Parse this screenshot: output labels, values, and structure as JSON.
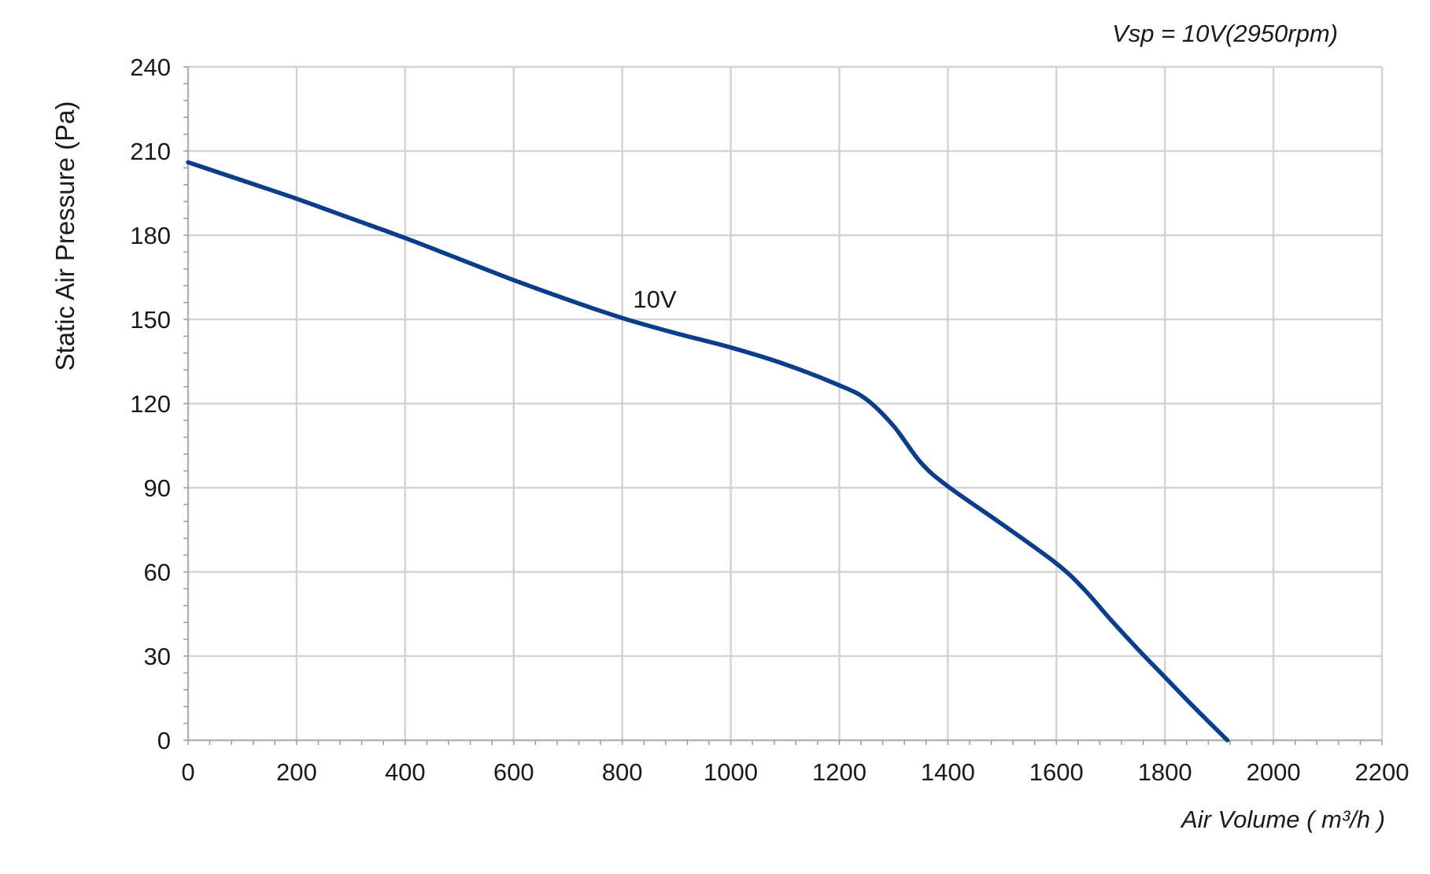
{
  "chart_data": {
    "type": "line",
    "title": "",
    "annotation": "Vsp = 10V(2950rpm)",
    "xlabel": "Air Volume ( m³/h )",
    "ylabel": "Static Air Pressure  (Pa)",
    "xlim": [
      0,
      2200
    ],
    "ylim": [
      0,
      240
    ],
    "xticks": [
      0,
      200,
      400,
      600,
      800,
      1000,
      1200,
      1400,
      1600,
      1800,
      2000,
      2200
    ],
    "yticks": [
      0,
      30,
      60,
      90,
      120,
      150,
      180,
      210,
      240
    ],
    "grid": true,
    "colors": {
      "series": "#0a3d8a",
      "grid": "#d3d3d3"
    },
    "series": [
      {
        "name": "10V",
        "x": [
          0,
          100,
          200,
          300,
          400,
          500,
          600,
          700,
          800,
          900,
          1000,
          1100,
          1200,
          1250,
          1300,
          1350,
          1400,
          1500,
          1600,
          1650,
          1700,
          1750,
          1800,
          1850,
          1915
        ],
        "values": [
          206,
          199.5,
          193,
          186,
          179,
          171.5,
          164,
          157,
          150.5,
          145,
          140,
          134,
          126.5,
          121.5,
          112,
          99,
          90.5,
          77,
          63,
          54,
          43,
          32.5,
          22.5,
          12.5,
          0
        ]
      }
    ]
  }
}
